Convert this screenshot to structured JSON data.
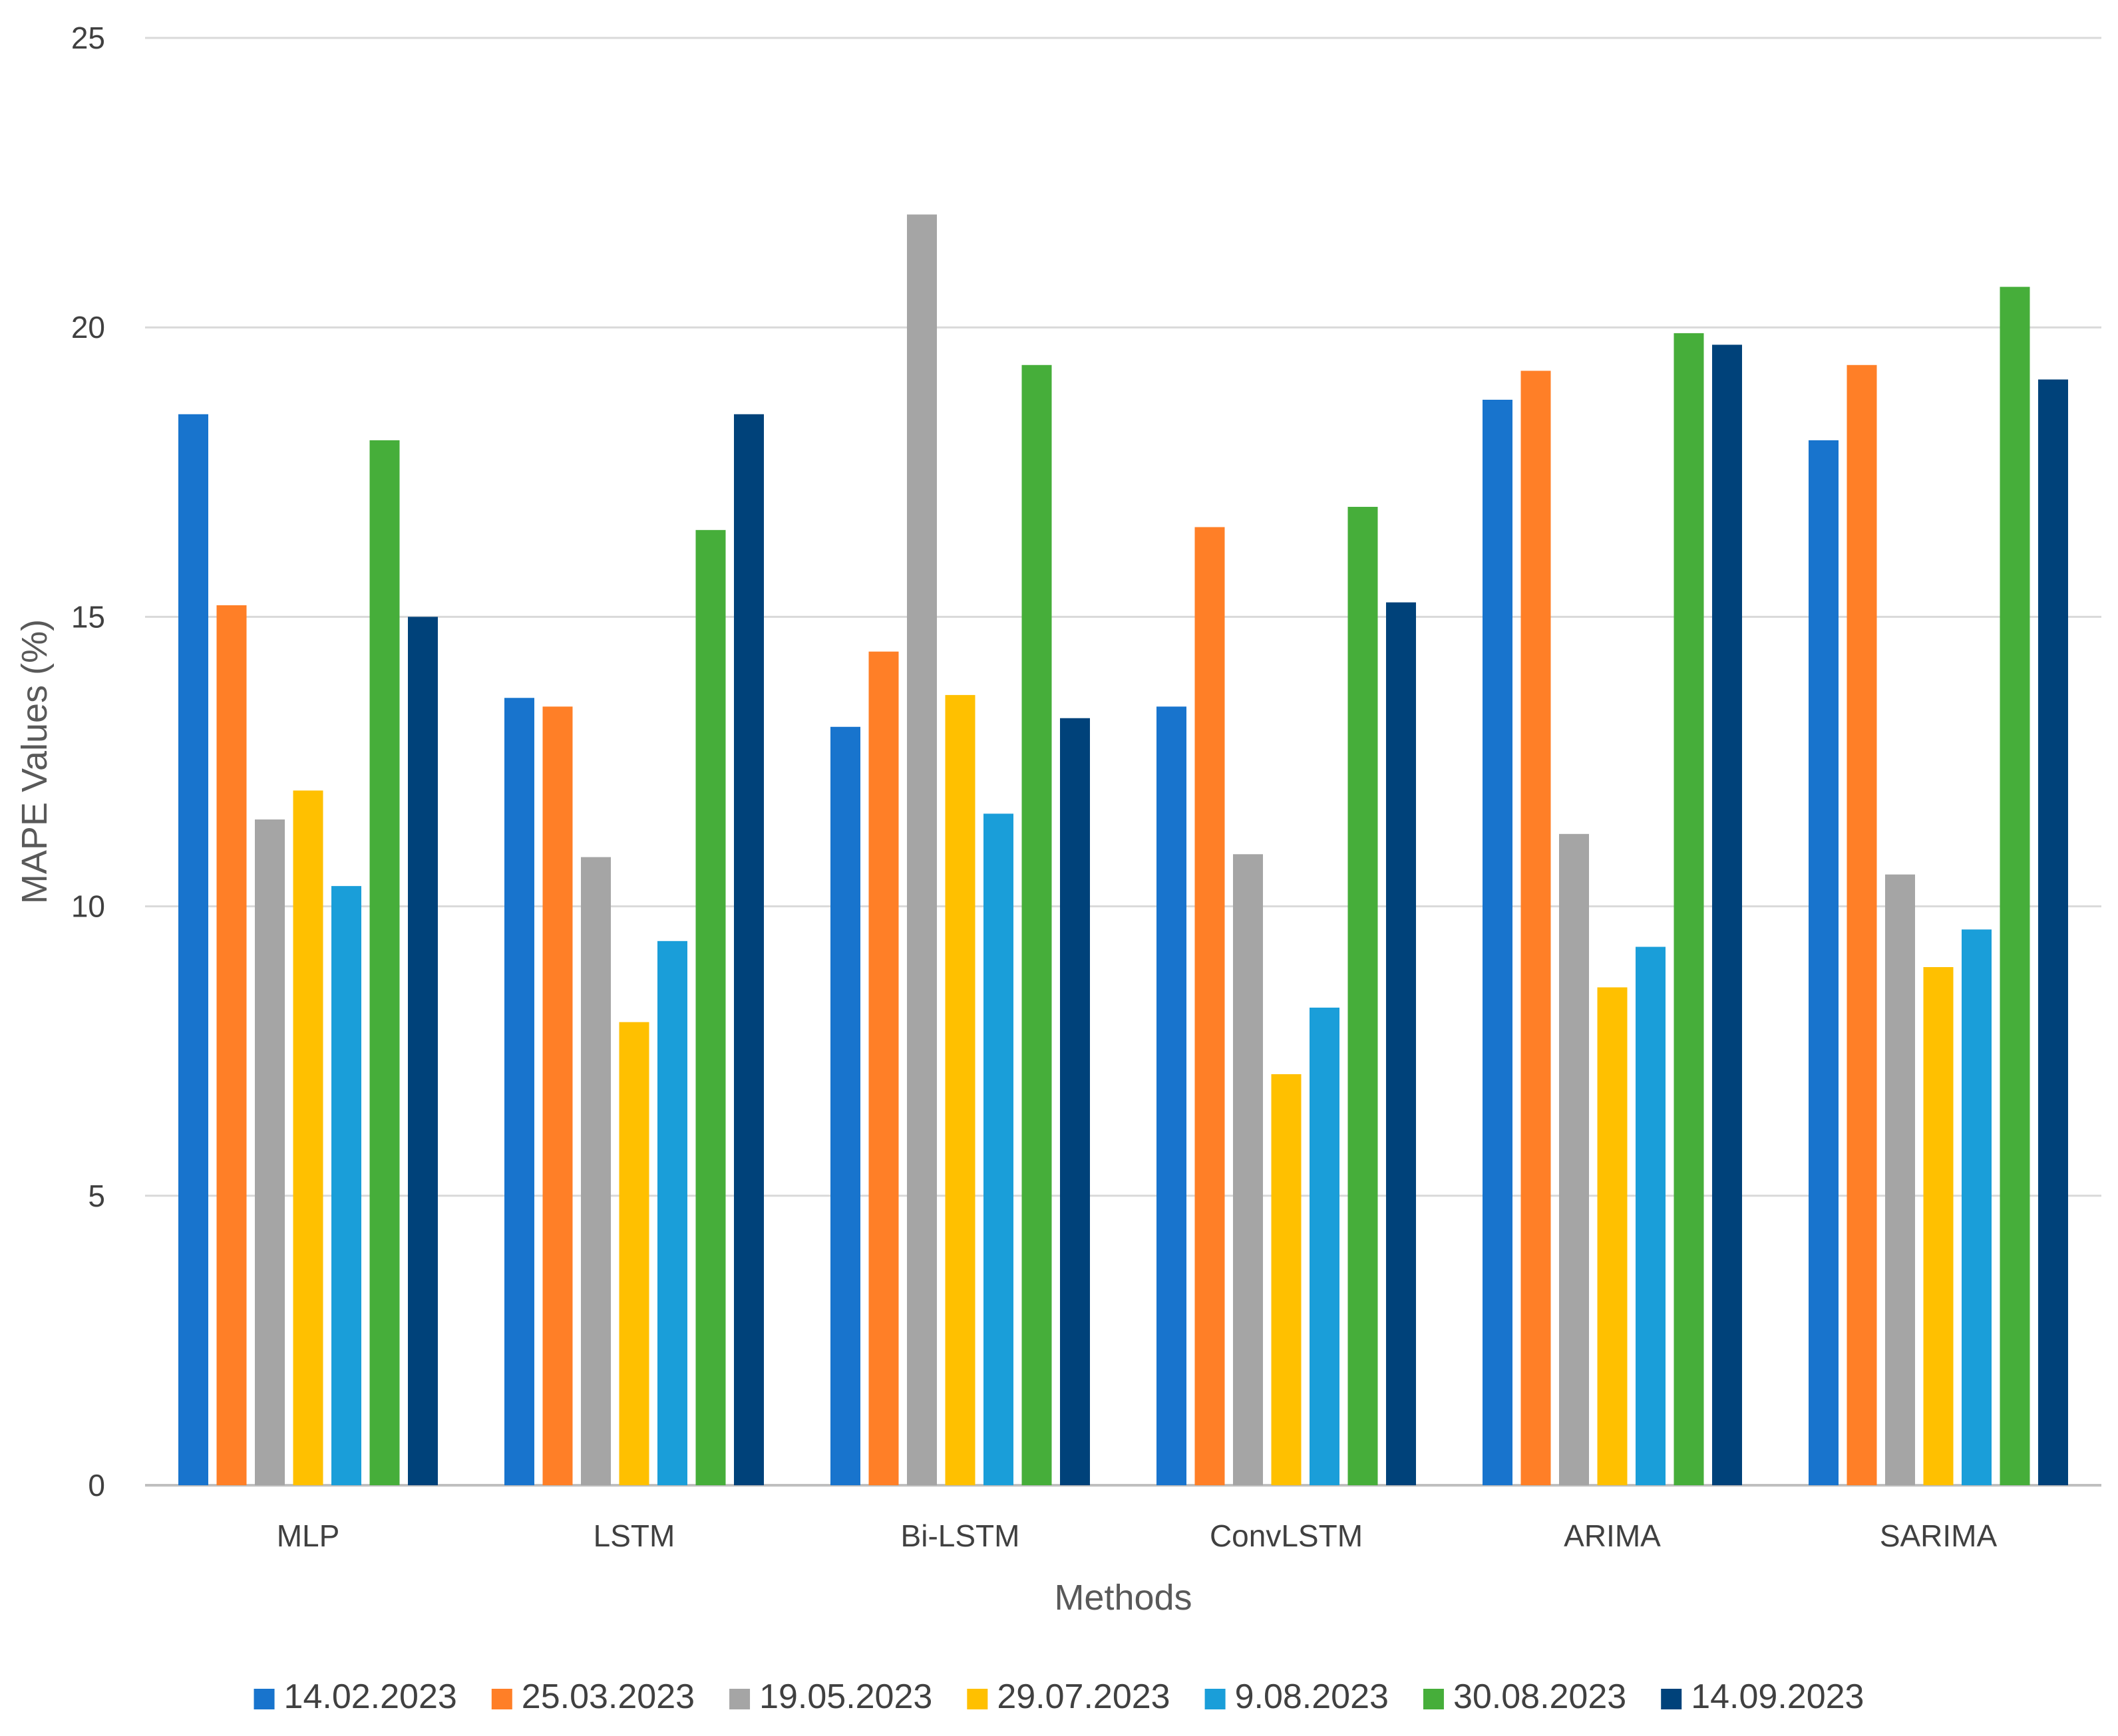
{
  "chart_data": {
    "type": "bar",
    "title": "",
    "xlabel": "Methods",
    "ylabel": "MAPE Values (%)",
    "ylim": [
      0,
      25
    ],
    "yticks": [
      0,
      5,
      10,
      15,
      20,
      25
    ],
    "grid": true,
    "legend_position": "bottom",
    "categories": [
      "MLP",
      "LSTM",
      "Bi-LSTM",
      "ConvLSTM",
      "ARIMA",
      "SARIMA"
    ],
    "series": [
      {
        "name": "14.02.2023",
        "color": "#1874CD",
        "values": [
          18.5,
          13.6,
          13.1,
          13.45,
          18.75,
          18.05
        ]
      },
      {
        "name": "25.03.2023",
        "color": "#FF7F27",
        "values": [
          15.2,
          13.45,
          14.4,
          16.55,
          19.25,
          19.35
        ]
      },
      {
        "name": "19.05.2023",
        "color": "#A5A5A5",
        "values": [
          11.5,
          10.85,
          21.95,
          10.9,
          11.25,
          10.55
        ]
      },
      {
        "name": "29.07.2023",
        "color": "#FFC000",
        "values": [
          12.0,
          8.0,
          13.65,
          7.1,
          8.6,
          8.95
        ]
      },
      {
        "name": "9.08.2023",
        "color": "#1A9ED9",
        "values": [
          10.35,
          9.4,
          11.6,
          8.25,
          9.3,
          9.6
        ]
      },
      {
        "name": "30.08.2023",
        "color": "#46AE3A",
        "values": [
          18.05,
          16.5,
          19.35,
          16.9,
          19.9,
          20.7
        ]
      },
      {
        "name": "14.09.2023",
        "color": "#00427A",
        "values": [
          15.0,
          18.5,
          13.25,
          15.25,
          19.7,
          19.1
        ]
      }
    ],
    "colors": {
      "grid": "#D9D9D9",
      "axis": "#BFBFBF",
      "text": "#404040",
      "title_text": "#595959"
    }
  }
}
